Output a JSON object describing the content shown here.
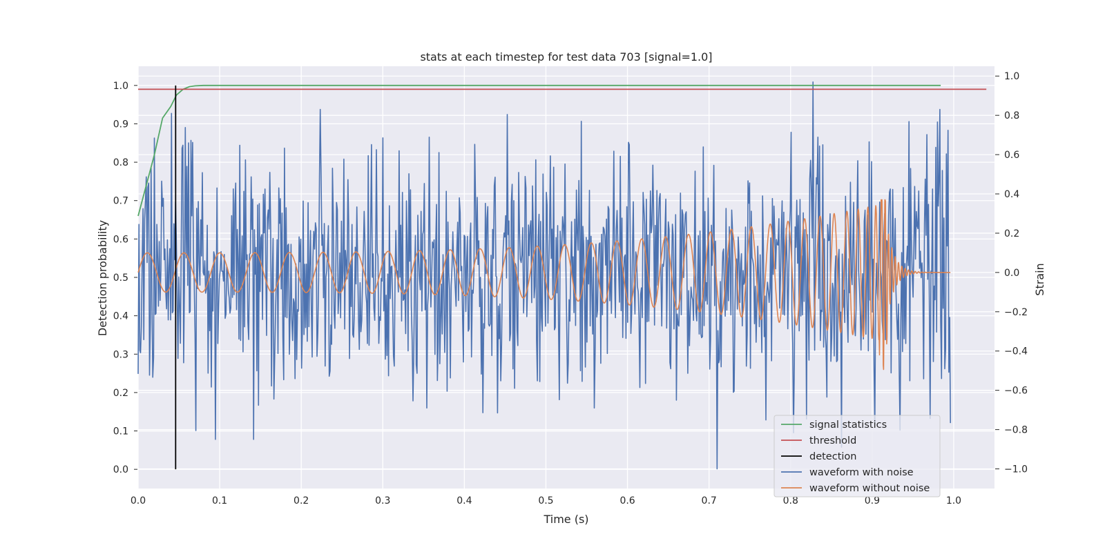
{
  "chart_data": {
    "type": "line",
    "title": "stats at each timestep for test data 703 [signal=1.0]",
    "xlabel": "Time (s)",
    "ylabel": "Detection probability",
    "y2label": "Strain",
    "xlim": [
      0.0,
      1.05
    ],
    "ylim": [
      -0.05,
      1.05
    ],
    "y2lim": [
      -1.1,
      1.05
    ],
    "xticks": [
      "0.0",
      "0.1",
      "0.2",
      "0.3",
      "0.4",
      "0.5",
      "0.6",
      "0.7",
      "0.8",
      "0.9",
      "1.0"
    ],
    "yticks": [
      "0.0",
      "0.1",
      "0.2",
      "0.3",
      "0.4",
      "0.5",
      "0.6",
      "0.7",
      "0.8",
      "0.9",
      "1.0"
    ],
    "y2ticks": [
      "−1.0",
      "−0.8",
      "−0.6",
      "−0.4",
      "−0.2",
      "0.0",
      "0.2",
      "0.4",
      "0.6",
      "0.8",
      "1.0"
    ],
    "grid": true,
    "legend_position": "lower-right",
    "colors": {
      "signal_statistics": "#55a868",
      "threshold": "#c44e52",
      "detection": "#000000",
      "waveform_with_noise": "#4c72b0",
      "waveform_without_noise": "#dd8452",
      "plot_background": "#eaeaf2",
      "grid": "#ffffff"
    },
    "series": [
      {
        "name": "signal statistics",
        "axis": "left",
        "x": [
          0.0,
          0.01,
          0.02,
          0.03,
          0.04,
          0.047,
          0.055,
          0.063,
          0.07,
          0.08,
          0.1,
          0.2,
          0.4,
          0.6,
          0.8,
          0.984
        ],
        "y": [
          0.66,
          0.74,
          0.82,
          0.915,
          0.945,
          0.975,
          0.99,
          0.997,
          0.999,
          1.0,
          1.0,
          1.0,
          1.0,
          1.0,
          1.0,
          1.0
        ]
      },
      {
        "name": "threshold",
        "axis": "left",
        "x": [
          0.0,
          1.04
        ],
        "y": [
          0.99,
          0.99
        ]
      },
      {
        "name": "detection",
        "axis": "left",
        "x": [
          0.046,
          0.046
        ],
        "y": [
          0.0,
          1.0
        ]
      },
      {
        "name": "waveform with noise",
        "axis": "right",
        "x_range": [
          0.0,
          0.996
        ],
        "points": 1000,
        "y_range": [
          -1.0,
          1.0
        ],
        "notable_points": [
          {
            "x": 0.041,
            "y": 0.81
          },
          {
            "x": 0.095,
            "y": -0.85
          },
          {
            "x": 0.223,
            "y": 0.83
          },
          {
            "x": 0.71,
            "y": -1.0
          },
          {
            "x": 0.828,
            "y": 0.97
          },
          {
            "x": 0.983,
            "y": 0.83
          }
        ]
      },
      {
        "name": "waveform without noise",
        "axis": "right",
        "x_range": [
          0.0,
          0.996
        ],
        "points": 1000,
        "amplitude_start": 0.1,
        "peak_amplitude": 0.35,
        "merger_time": 0.915,
        "y_max": 0.37,
        "y_min": -0.57
      }
    ]
  }
}
